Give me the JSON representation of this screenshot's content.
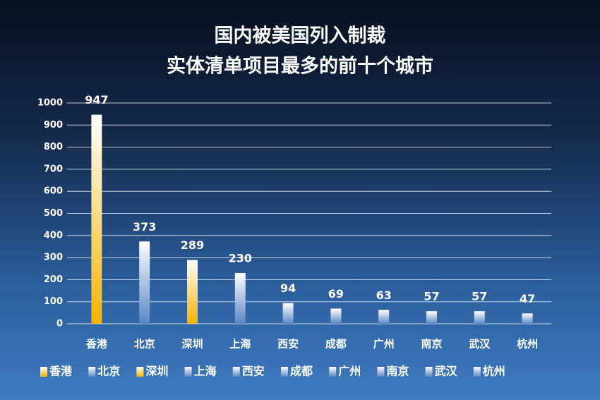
{
  "chart_data": {
    "type": "bar",
    "title": [
      "国内被美国列入制裁",
      "实体清单项目最多的前十个城市"
    ],
    "categories": [
      "香港",
      "北京",
      "深圳",
      "上海",
      "西安",
      "成都",
      "广州",
      "南京",
      "武汉",
      "杭州"
    ],
    "values": [
      947,
      373,
      289,
      230,
      94,
      69,
      63,
      57,
      57,
      47
    ],
    "colors": [
      "#f5b400",
      "#5a86c4",
      "#f5b400",
      "#5a86c4",
      "#5a86c4",
      "#5a86c4",
      "#5a86c4",
      "#5a86c4",
      "#5a86c4",
      "#5a86c4"
    ],
    "ylim": [
      0,
      1000
    ],
    "yticks": [
      0,
      100,
      200,
      300,
      400,
      500,
      600,
      700,
      800,
      900,
      1000
    ],
    "grid": true,
    "legend": "bottom"
  }
}
